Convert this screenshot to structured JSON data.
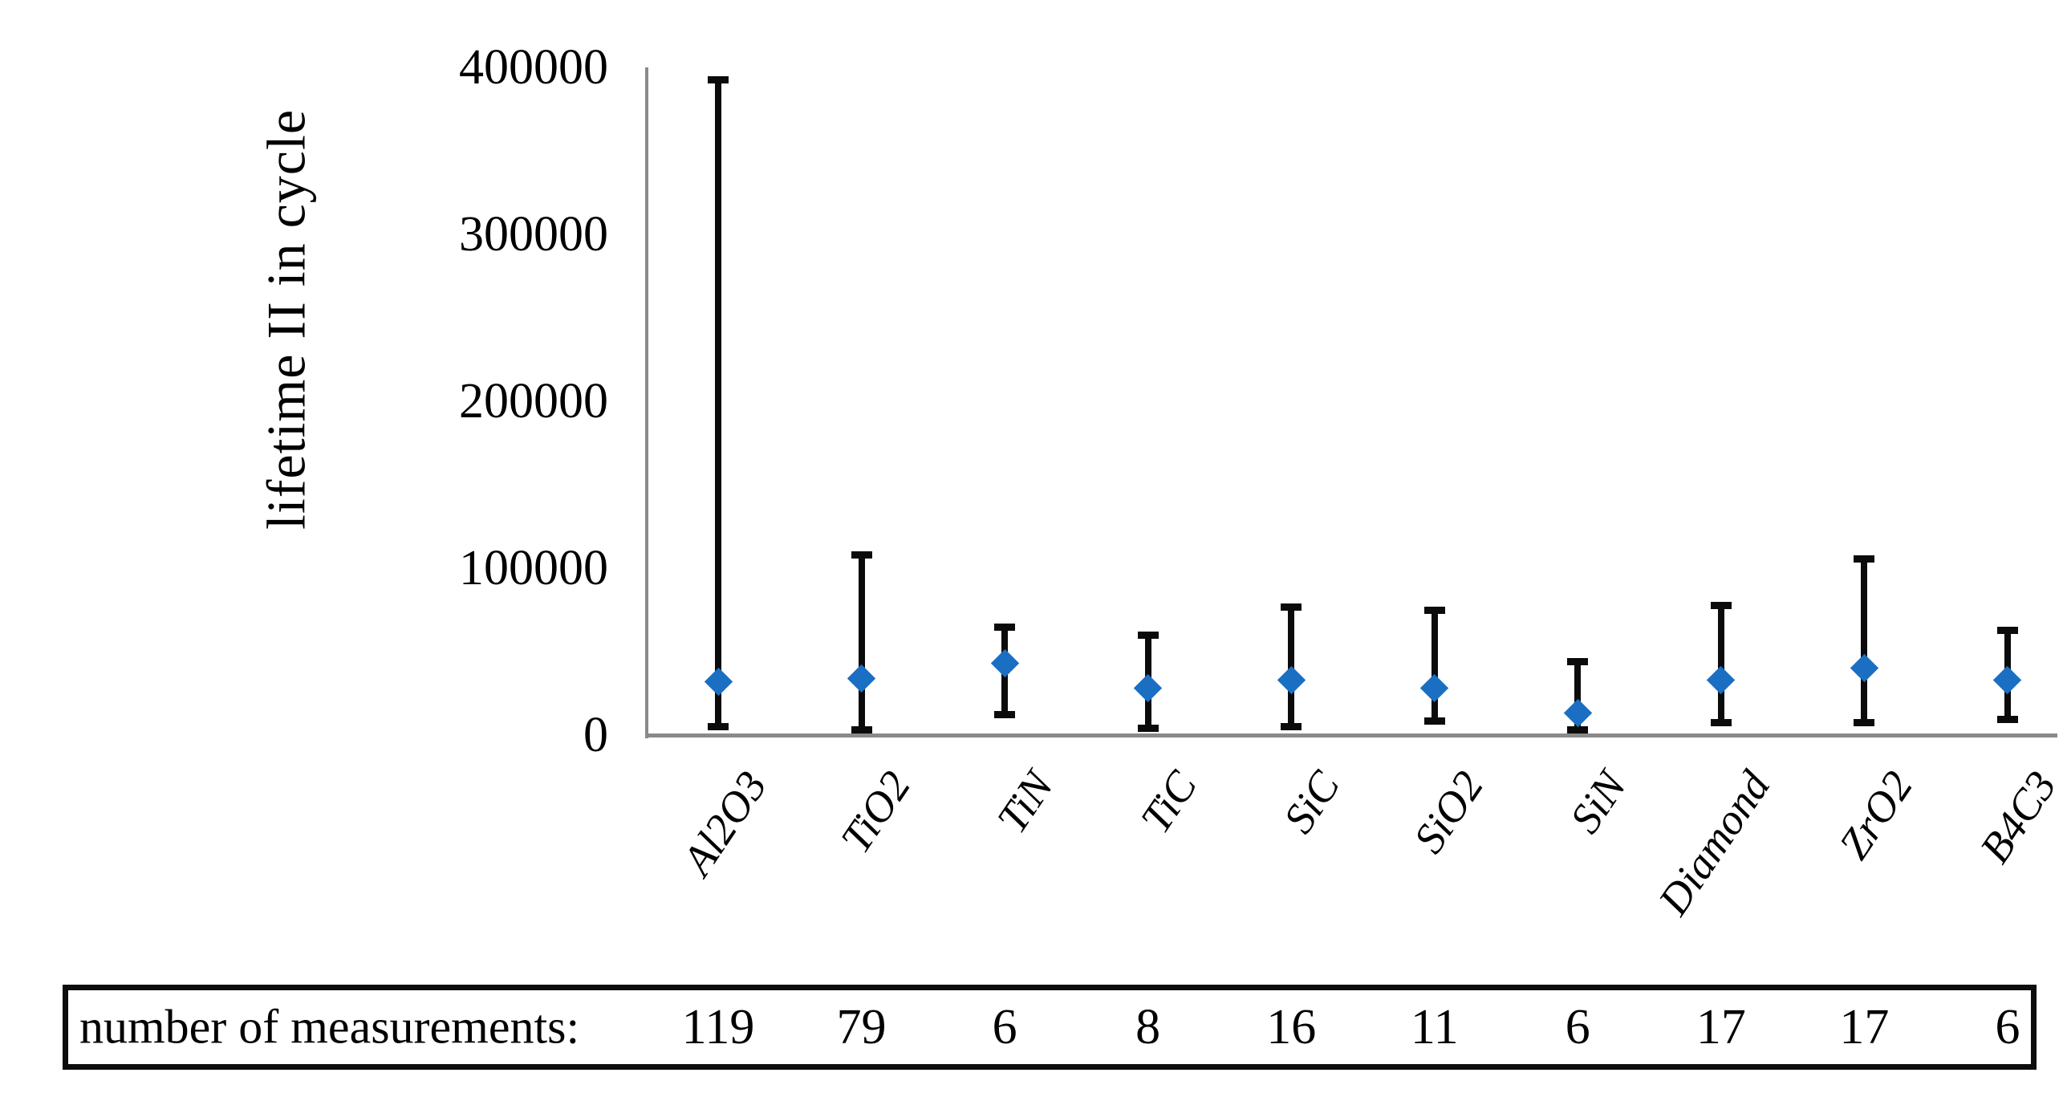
{
  "chart_data": {
    "type": "scatter",
    "title": "",
    "ylabel": "lifetime II in cycle",
    "xlabel": "",
    "ylim": [
      0,
      400000
    ],
    "y_ticks": [
      0,
      100000,
      200000,
      300000,
      400000
    ],
    "grid": false,
    "legend": false,
    "marker": "diamond",
    "marker_color": "#1b6fc3",
    "error_bar_color": "#0b0b0b",
    "axis_color": "#8a8a8a",
    "categories": [
      "Al2O3",
      "TiO2",
      "TiN",
      "TiC",
      "SiC",
      "SiO2",
      "SiN",
      "Diamond",
      "ZrO2",
      "B4C3"
    ],
    "points": [
      {
        "category": "Al2O3",
        "median": 32000,
        "min": 5000,
        "max": 393000,
        "n_measurements": 119
      },
      {
        "category": "TiO2",
        "median": 34000,
        "min": 3000,
        "max": 108000,
        "n_measurements": 79
      },
      {
        "category": "TiN",
        "median": 43000,
        "min": 12000,
        "max": 65000,
        "n_measurements": 6
      },
      {
        "category": "TiC",
        "median": 28000,
        "min": 4000,
        "max": 60000,
        "n_measurements": 8
      },
      {
        "category": "SiC",
        "median": 33000,
        "min": 5000,
        "max": 77000,
        "n_measurements": 16
      },
      {
        "category": "SiO2",
        "median": 28000,
        "min": 8000,
        "max": 75000,
        "n_measurements": 11
      },
      {
        "category": "SiN",
        "median": 13000,
        "min": 3000,
        "max": 44000,
        "n_measurements": 6
      },
      {
        "category": "Diamond",
        "median": 33000,
        "min": 7000,
        "max": 78000,
        "n_measurements": 17
      },
      {
        "category": "ZrO2",
        "median": 40000,
        "min": 7000,
        "max": 106000,
        "n_measurements": 17
      },
      {
        "category": "B4C3",
        "median": 33000,
        "min": 9000,
        "max": 63000,
        "n_measurements": 6
      }
    ]
  },
  "table": {
    "label": "number of measurements:"
  }
}
